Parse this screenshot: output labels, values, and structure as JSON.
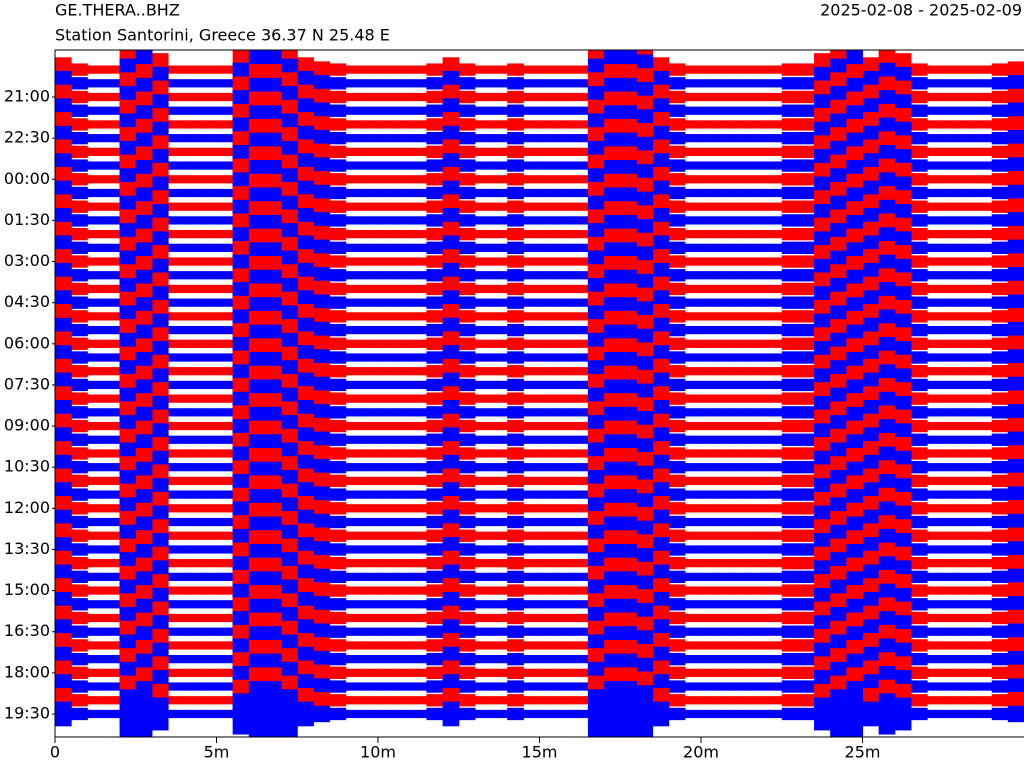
{
  "chart_data": {
    "type": "helicorder",
    "title": "GE.THERA..BHZ",
    "subtitle": "Station Santorini, Greece  36.37 N 25.48 E",
    "date_range": "2025-02-08 - 2025-02-09",
    "rows": 48,
    "colors": [
      "#ff0000",
      "#0000ff"
    ],
    "xlim": [
      0,
      30
    ],
    "xticks": [
      0,
      {
        "value": 5,
        "label": "5m"
      },
      {
        "value": 10,
        "label": "10m"
      },
      {
        "value": 15,
        "label": "15m"
      },
      {
        "value": 20,
        "label": "20m"
      },
      {
        "value": 25,
        "label": "25m"
      }
    ],
    "yticks": [
      {
        "value": 2,
        "label": "21:00"
      },
      {
        "value": 5,
        "label": "22:30"
      },
      {
        "value": 8,
        "label": "00:00"
      },
      {
        "value": 11,
        "label": "01:30"
      },
      {
        "value": 14,
        "label": "03:00"
      },
      {
        "value": 17,
        "label": "04:30"
      },
      {
        "value": 20,
        "label": "06:00"
      },
      {
        "value": 23,
        "label": "07:30"
      },
      {
        "value": 26,
        "label": "09:00"
      },
      {
        "value": 29,
        "label": "10:30"
      },
      {
        "value": 32,
        "label": "12:00"
      },
      {
        "value": 35,
        "label": "13:30"
      },
      {
        "value": 38,
        "label": "15:00"
      },
      {
        "value": 41,
        "label": "16:30"
      },
      {
        "value": 44,
        "label": "18:00"
      },
      {
        "value": 47,
        "label": "19:30"
      }
    ],
    "bin_minutes": 0.5,
    "envelope": [
      3,
      1.5,
      1,
      1,
      6,
      8,
      4,
      1,
      1,
      1,
      1,
      5,
      8,
      8,
      6,
      3,
      2,
      1.5,
      1,
      1,
      1,
      1,
      1,
      1.5,
      3,
      1.5,
      1,
      1,
      1.5,
      1,
      1,
      1,
      1,
      6,
      8,
      8,
      7,
      3,
      1.5,
      1,
      1,
      1,
      1,
      1,
      1,
      1.5,
      1.5,
      4,
      6,
      8,
      3,
      5,
      4,
      1.5,
      1,
      1,
      1,
      1,
      1.5,
      2
    ]
  }
}
